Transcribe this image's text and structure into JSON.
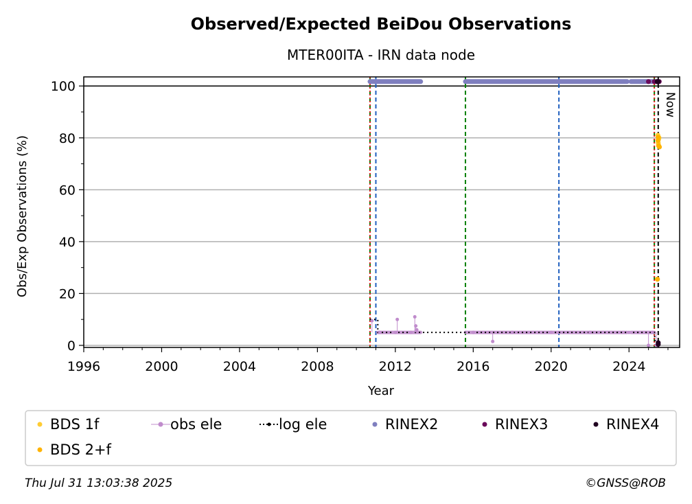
{
  "chart_data": {
    "type": "scatter",
    "title": "Observed/Expected BeiDou Observations",
    "subtitle": "MTER00ITA - IRN data node",
    "xlabel": "Year",
    "ylabel": "Obs/Exp Observations (%)",
    "xlim": [
      1996.0,
      2026.6
    ],
    "ylim": [
      -0.8,
      103.5
    ],
    "xticks": [
      1996,
      2000,
      2004,
      2008,
      2012,
      2016,
      2020,
      2024
    ],
    "yticks": [
      0,
      20,
      40,
      60,
      80,
      100
    ],
    "grid": "horizontal",
    "now_label": "Now",
    "reference_line_y": 100,
    "legend_position": "bottom",
    "vertical_lines": [
      {
        "x": 2010.7,
        "color": "#008000",
        "style": "dashed"
      },
      {
        "x": 2010.7,
        "color": "#e41a1c",
        "style": "dotted"
      },
      {
        "x": 2011.0,
        "color": "#1f5fbf",
        "style": "dashed"
      },
      {
        "x": 2015.6,
        "color": "#008000",
        "style": "dashed"
      },
      {
        "x": 2020.4,
        "color": "#1f5fbf",
        "style": "dashed"
      },
      {
        "x": 2025.3,
        "color": "#008000",
        "style": "dashed"
      },
      {
        "x": 2025.3,
        "color": "#e41a1c",
        "style": "dotted"
      },
      {
        "x": 2025.5,
        "color": "#000000",
        "style": "dashed"
      }
    ],
    "series": [
      {
        "name": "BDS 1f",
        "color": "#ffcc33",
        "marker": "dot",
        "points": [
          [
            2025.48,
            81
          ],
          [
            2025.5,
            80.5
          ],
          [
            2025.52,
            79.5
          ],
          [
            2025.5,
            78
          ],
          [
            2025.54,
            80
          ]
        ]
      },
      {
        "name": "BDS 2+f",
        "color": "#ffb300",
        "marker": "dot",
        "points": [
          [
            2025.46,
            25.5
          ],
          [
            2025.5,
            80.2
          ],
          [
            2025.52,
            77
          ],
          [
            2025.56,
            76.5
          ],
          [
            2025.49,
            79
          ]
        ]
      },
      {
        "name": "obs ele",
        "color": "#c08ccc",
        "marker": "stem",
        "points": [
          [
            2010.8,
            9.5
          ],
          [
            2011.2,
            5
          ],
          [
            2012.0,
            5
          ],
          [
            2012.1,
            10
          ],
          [
            2012.8,
            5
          ],
          [
            2013.0,
            11
          ],
          [
            2013.05,
            7.5
          ],
          [
            2013.1,
            6
          ],
          [
            2016.0,
            5
          ],
          [
            2017.0,
            1.5
          ],
          [
            2018.0,
            5
          ],
          [
            2020.0,
            5
          ],
          [
            2022.0,
            5
          ],
          [
            2024.0,
            5
          ],
          [
            2025.0,
            0
          ],
          [
            2025.2,
            5
          ],
          [
            2025.4,
            0
          ]
        ]
      },
      {
        "name": "log ele",
        "color": "#000000",
        "marker": "dotted-line",
        "points": [
          [
            2010.7,
            10
          ],
          [
            2011.1,
            10
          ],
          [
            2011.1,
            5
          ],
          [
            2025.3,
            5
          ],
          [
            2025.35,
            0
          ]
        ]
      },
      {
        "name": "RINEX2",
        "color": "#7f7fbf",
        "marker": "dot",
        "segments": [
          [
            2010.7,
            2013.3,
            101.7
          ],
          [
            2015.6,
            2023.9,
            101.7
          ],
          [
            2024.1,
            2025.2,
            101.7
          ]
        ],
        "lower_segments": [
          [
            2011.1,
            2013.3,
            5
          ],
          [
            2015.6,
            2023.9,
            5
          ],
          [
            2024.1,
            2025.3,
            5
          ]
        ]
      },
      {
        "name": "RINEX3",
        "color": "#6a0a5a",
        "marker": "dot",
        "points": [
          [
            2025.0,
            101.7
          ],
          [
            2025.3,
            101.7
          ],
          [
            2025.4,
            101.7
          ],
          [
            2025.45,
            101.7
          ],
          [
            2025.55,
            101.7
          ]
        ]
      },
      {
        "name": "RINEX4",
        "color": "#200020",
        "marker": "dot",
        "points": [
          [
            2025.45,
            101.7
          ],
          [
            2025.5,
            101.7
          ],
          [
            2025.5,
            1
          ],
          [
            2025.5,
            0.4
          ]
        ]
      }
    ],
    "legend": [
      {
        "label": "BDS 1f",
        "color": "#ffcc33",
        "marker": "dot"
      },
      {
        "label": "obs ele",
        "color": "#c08ccc",
        "marker": "stem"
      },
      {
        "label": "log ele",
        "color": "#000000",
        "marker": "dotted-line"
      },
      {
        "label": "RINEX2",
        "color": "#7f7fbf",
        "marker": "dot"
      },
      {
        "label": "RINEX3",
        "color": "#6a0a5a",
        "marker": "dot"
      },
      {
        "label": "RINEX4",
        "color": "#200020",
        "marker": "dot"
      },
      {
        "label": "BDS 2+f",
        "color": "#ffb300",
        "marker": "dot"
      }
    ]
  },
  "footer": {
    "timestamp": "Thu Jul 31 13:03:38 2025",
    "copyright": "©GNSS@ROB"
  }
}
